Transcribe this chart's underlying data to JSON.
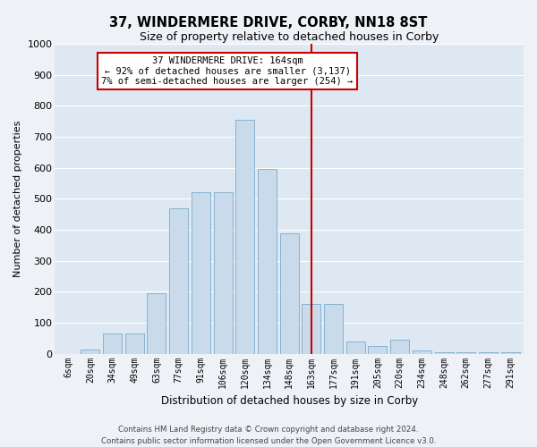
{
  "title": "37, WINDERMERE DRIVE, CORBY, NN18 8ST",
  "subtitle": "Size of property relative to detached houses in Corby",
  "xlabel": "Distribution of detached houses by size in Corby",
  "ylabel": "Number of detached properties",
  "bar_labels": [
    "6sqm",
    "20sqm",
    "34sqm",
    "49sqm",
    "63sqm",
    "77sqm",
    "91sqm",
    "106sqm",
    "120sqm",
    "134sqm",
    "148sqm",
    "163sqm",
    "177sqm",
    "191sqm",
    "205sqm",
    "220sqm",
    "234sqm",
    "248sqm",
    "262sqm",
    "277sqm",
    "291sqm"
  ],
  "bar_values": [
    0,
    12,
    65,
    65,
    195,
    470,
    520,
    520,
    755,
    595,
    390,
    160,
    160,
    40,
    25,
    45,
    10,
    5,
    5,
    5,
    5
  ],
  "bar_color": "#c9daea",
  "bar_edge_color": "#7aabcf",
  "vline_index": 11,
  "vline_color": "#cc0000",
  "annotation_title": "37 WINDERMERE DRIVE: 164sqm",
  "annotation_line1": "← 92% of detached houses are smaller (3,137)",
  "annotation_line2": "7% of semi-detached houses are larger (254) →",
  "ylim": [
    0,
    1000
  ],
  "yticks": [
    0,
    100,
    200,
    300,
    400,
    500,
    600,
    700,
    800,
    900,
    1000
  ],
  "fig_bg": "#eef2f7",
  "ax_bg": "#dde8f2",
  "grid_color": "#ffffff",
  "footer": "Contains HM Land Registry data © Crown copyright and database right 2024.\nContains public sector information licensed under the Open Government Licence v3.0."
}
